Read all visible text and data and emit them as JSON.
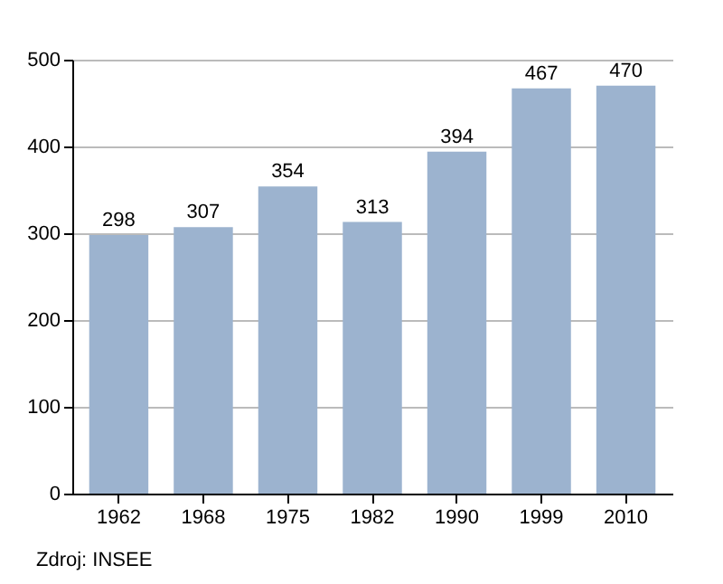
{
  "chart_data": {
    "type": "bar",
    "categories": [
      "1962",
      "1968",
      "1975",
      "1982",
      "1990",
      "1999",
      "2010"
    ],
    "values": [
      298,
      307,
      354,
      313,
      394,
      467,
      470
    ],
    "color": "#9cb3cf",
    "ylim": [
      0,
      500
    ],
    "yticks": [
      0,
      100,
      200,
      300,
      400,
      500
    ],
    "grid": true,
    "data_labels": true,
    "annotations": [
      "Zdroj: INSEE"
    ]
  }
}
